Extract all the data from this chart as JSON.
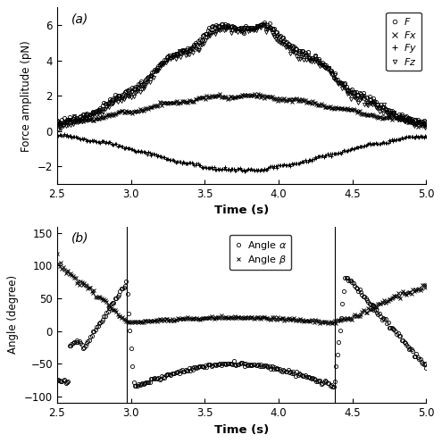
{
  "xlim": [
    2.5,
    5.0
  ],
  "panel_a": {
    "ylim": [
      -3,
      7
    ],
    "yticks": [
      -2,
      0,
      2,
      4,
      6
    ],
    "ylabel": "Force amplitude (pN)",
    "xlabel": "Time (s)",
    "label": "(a)",
    "legend_order": [
      "F",
      "Fx",
      "Fy",
      "Fz"
    ]
  },
  "panel_b": {
    "ylim": [
      -110,
      160
    ],
    "yticks": [
      -100,
      -50,
      0,
      50,
      100,
      150
    ],
    "ylabel": "Angle (degree)",
    "xlabel": "Time (s)",
    "label": "(b)",
    "vlines": [
      2.97,
      4.38
    ]
  },
  "color": "black",
  "background": "white"
}
